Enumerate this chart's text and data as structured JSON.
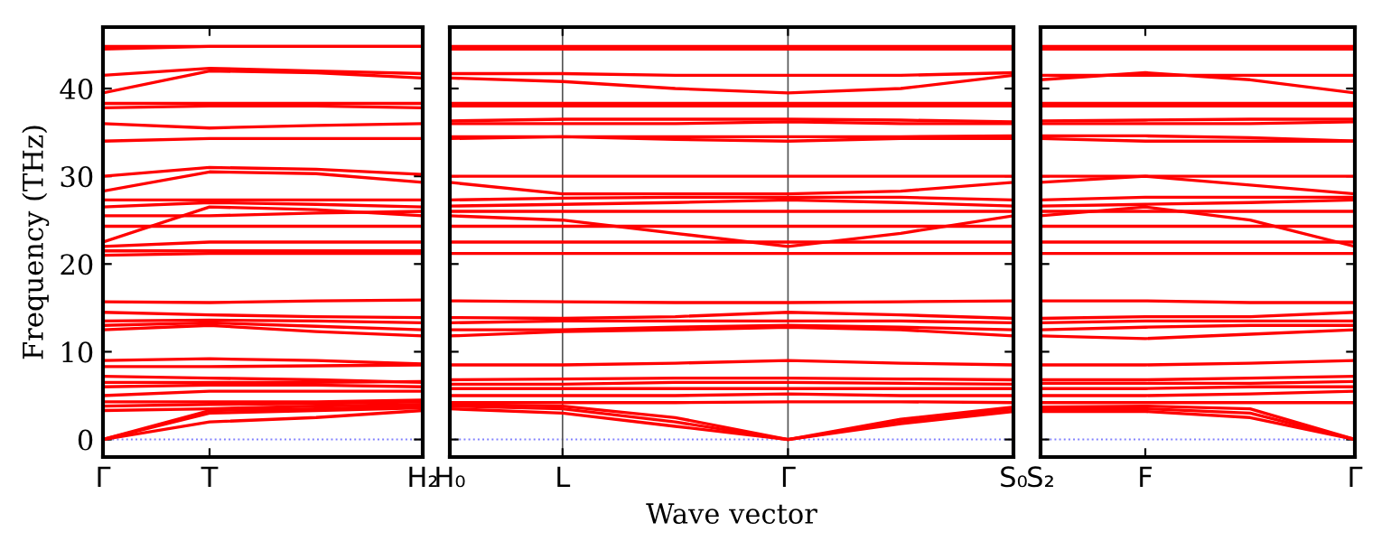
{
  "chart_data": [
    {
      "type": "line",
      "ylabel": "Frequency (THz)",
      "categories": [
        "Γ",
        "T",
        null,
        "H₂"
      ],
      "ylim": [
        -2,
        47
      ],
      "yticks": [
        0,
        10,
        20,
        30,
        40
      ],
      "line_style": "solid",
      "ref_lines": [
        {
          "axis": "y",
          "value": 0,
          "label": null,
          "color": "#8080ff",
          "line_style": "dotted"
        }
      ],
      "series": [
        {
          "color": "#ff0000",
          "values": [
            0,
            2,
            2.5,
            3.3
          ]
        },
        {
          "color": "#ff0000",
          "values": [
            0,
            3,
            3.3,
            3.6
          ]
        },
        {
          "color": "#ff0000",
          "values": [
            0,
            3.3,
            3.5,
            3.8
          ]
        },
        {
          "color": "#ff0000",
          "values": [
            3.3,
            3.5,
            3.8,
            4
          ]
        },
        {
          "color": "#ff0000",
          "values": [
            3.8,
            4,
            4.1,
            4.3
          ]
        },
        {
          "color": "#ff0000",
          "values": [
            4.3,
            4.3,
            4.3,
            4.5
          ]
        },
        {
          "color": "#ff0000",
          "values": [
            5,
            5.5,
            5.5,
            5.5
          ]
        },
        {
          "color": "#ff0000",
          "values": [
            6,
            6.2,
            6.2,
            6
          ]
        },
        {
          "color": "#ff0000",
          "values": [
            6.5,
            6.5,
            6.5,
            6.6
          ]
        },
        {
          "color": "#ff0000",
          "values": [
            7.2,
            7,
            6.8,
            6.5
          ]
        },
        {
          "color": "#ff0000",
          "values": [
            8.3,
            8.3,
            8.4,
            8.5
          ]
        },
        {
          "color": "#ff0000",
          "values": [
            9,
            9.2,
            9,
            8.6
          ]
        },
        {
          "color": "#ff0000",
          "values": [
            12.5,
            13,
            12.3,
            11.8
          ]
        },
        {
          "color": "#ff0000",
          "values": [
            13,
            13.3,
            12.9,
            12.5
          ]
        },
        {
          "color": "#ff0000",
          "values": [
            13.5,
            13.6,
            13.5,
            13.3
          ]
        },
        {
          "color": "#ff0000",
          "values": [
            14.5,
            14.2,
            14,
            13.9
          ]
        },
        {
          "color": "#ff0000",
          "values": [
            15.7,
            15.6,
            15.8,
            15.9
          ]
        },
        {
          "color": "#ff0000",
          "values": [
            21,
            21.2,
            21.2,
            21.2
          ]
        },
        {
          "color": "#ff0000",
          "values": [
            21.5,
            21.5,
            21.5,
            21.5
          ]
        },
        {
          "color": "#ff0000",
          "values": [
            22,
            22.5,
            22.5,
            22.5
          ]
        },
        {
          "color": "#ff0000",
          "values": [
            22.5,
            26.5,
            26.2,
            25.5
          ]
        },
        {
          "color": "#ff0000",
          "values": [
            24.3,
            24.3,
            24.3,
            24.3
          ]
        },
        {
          "color": "#ff0000",
          "values": [
            25.5,
            25.5,
            25.8,
            26
          ]
        },
        {
          "color": "#ff0000",
          "values": [
            26.5,
            27,
            26.8,
            26.5
          ]
        },
        {
          "color": "#ff0000",
          "values": [
            27.3,
            27.3,
            27.3,
            27.3
          ]
        },
        {
          "color": "#ff0000",
          "values": [
            28.3,
            30.5,
            30.3,
            29.3
          ]
        },
        {
          "color": "#ff0000",
          "values": [
            30,
            31,
            30.8,
            30.2
          ]
        },
        {
          "color": "#ff0000",
          "values": [
            34,
            34.3,
            34.3,
            34.3
          ]
        },
        {
          "color": "#ff0000",
          "values": [
            36,
            35.5,
            35.8,
            36
          ]
        },
        {
          "color": "#ff0000",
          "values": [
            37.8,
            38,
            38,
            37.8
          ]
        },
        {
          "color": "#ff0000",
          "values": [
            38.3,
            38.3,
            38.3,
            38.3
          ]
        },
        {
          "color": "#ff0000",
          "values": [
            39.5,
            42,
            41.8,
            41.2
          ]
        },
        {
          "color": "#ff0000",
          "values": [
            41.5,
            42.3,
            42,
            41.7
          ]
        },
        {
          "color": "#ff0000",
          "values": [
            44.5,
            44.8,
            44.8,
            44.8
          ]
        },
        {
          "color": "#ff0000",
          "values": [
            44.8,
            44.8,
            44.8,
            44.8
          ]
        }
      ]
    },
    {
      "type": "line",
      "xlabel": "Wave vector",
      "categories": [
        "H₀",
        "L",
        null,
        "Γ",
        null,
        "S₀"
      ],
      "ylim": [
        -2,
        47
      ],
      "yticks": [
        {
          "value": 0,
          "label": null
        },
        {
          "value": 10,
          "label": null
        },
        {
          "value": 20,
          "label": null
        },
        {
          "value": 30,
          "label": null
        },
        {
          "value": 40,
          "label": null
        }
      ],
      "tick_labels": "x",
      "grid": "x",
      "line_style": "solid",
      "ref_lines": [
        {
          "axis": "y",
          "value": 0,
          "label": null,
          "color": "#8080ff",
          "line_style": "dotted"
        }
      ],
      "series": [
        {
          "color": "#ff0000",
          "values": [
            3.5,
            3,
            1.5,
            0,
            1.8,
            3.2
          ]
        },
        {
          "color": "#ff0000",
          "values": [
            3.8,
            3.5,
            2,
            0,
            2,
            3.5
          ]
        },
        {
          "color": "#ff0000",
          "values": [
            4,
            3.8,
            2.5,
            0,
            2.3,
            3.7
          ]
        },
        {
          "color": "#ff0000",
          "values": [
            4.2,
            4.2,
            4.2,
            4.3,
            4.3,
            4.2
          ]
        },
        {
          "color": "#ff0000",
          "values": [
            5,
            5,
            5,
            5.2,
            5,
            5
          ]
        },
        {
          "color": "#ff0000",
          "values": [
            5.8,
            5.8,
            5.8,
            5.8,
            5.8,
            5.8
          ]
        },
        {
          "color": "#ff0000",
          "values": [
            6.3,
            6.3,
            6.5,
            6.5,
            6.4,
            6.3
          ]
        },
        {
          "color": "#ff0000",
          "values": [
            6.8,
            6.9,
            7,
            7,
            6.9,
            6.8
          ]
        },
        {
          "color": "#ff0000",
          "values": [
            8.5,
            8.5,
            8.7,
            9,
            8.7,
            8.5
          ]
        },
        {
          "color": "#ff0000",
          "values": [
            11.8,
            12.3,
            12.5,
            12.8,
            12.5,
            11.8
          ]
        },
        {
          "color": "#ff0000",
          "values": [
            12.5,
            12.5,
            12.8,
            13,
            12.8,
            12.5
          ]
        },
        {
          "color": "#ff0000",
          "values": [
            13.3,
            13.5,
            13.5,
            13.5,
            13.5,
            13.3
          ]
        },
        {
          "color": "#ff0000",
          "values": [
            13.9,
            13.8,
            14,
            14.5,
            14.2,
            13.8
          ]
        },
        {
          "color": "#ff0000",
          "values": [
            15.8,
            15.7,
            15.6,
            15.6,
            15.7,
            15.8
          ]
        },
        {
          "color": "#ff0000",
          "values": [
            21.2,
            21.2,
            21.2,
            21.2,
            21.2,
            21.2
          ]
        },
        {
          "color": "#ff0000",
          "values": [
            22.5,
            22.5,
            22.5,
            22.5,
            22.5,
            22.5
          ]
        },
        {
          "color": "#ff0000",
          "values": [
            25.5,
            25,
            23.5,
            22,
            23.5,
            25.5
          ]
        },
        {
          "color": "#ff0000",
          "values": [
            24.3,
            24.3,
            24.3,
            24.3,
            24.3,
            24.3
          ]
        },
        {
          "color": "#ff0000",
          "values": [
            26,
            26,
            26,
            26,
            26,
            26
          ]
        },
        {
          "color": "#ff0000",
          "values": [
            26.6,
            26.8,
            27,
            27.3,
            27,
            26.6
          ]
        },
        {
          "color": "#ff0000",
          "values": [
            27.3,
            27.5,
            27.6,
            27.6,
            27.6,
            27.3
          ]
        },
        {
          "color": "#ff0000",
          "values": [
            29.3,
            28,
            28,
            28,
            28.3,
            29.3
          ]
        },
        {
          "color": "#ff0000",
          "values": [
            30,
            30,
            30,
            30,
            30,
            30
          ]
        },
        {
          "color": "#ff0000",
          "values": [
            34.3,
            34.5,
            34.2,
            34,
            34.3,
            34.3
          ]
        },
        {
          "color": "#ff0000",
          "values": [
            34.5,
            34.5,
            34.5,
            34.5,
            34.5,
            34.6
          ]
        },
        {
          "color": "#ff0000",
          "values": [
            36,
            36,
            36,
            36.2,
            36,
            36
          ]
        },
        {
          "color": "#ff0000",
          "values": [
            36.3,
            36.5,
            36.5,
            36.5,
            36.4,
            36.2
          ]
        },
        {
          "color": "#ff0000",
          "values": [
            38,
            38,
            38,
            38,
            38,
            38
          ]
        },
        {
          "color": "#ff0000",
          "values": [
            38.3,
            38.3,
            38.3,
            38.3,
            38.3,
            38.3
          ]
        },
        {
          "color": "#ff0000",
          "values": [
            41.2,
            40.8,
            40,
            39.5,
            40,
            41.5
          ]
        },
        {
          "color": "#ff0000",
          "values": [
            41.7,
            41.7,
            41.5,
            41.5,
            41.5,
            41.8
          ]
        },
        {
          "color": "#ff0000",
          "values": [
            44.8,
            44.8,
            44.8,
            44.8,
            44.8,
            44.8
          ]
        },
        {
          "color": "#ff0000",
          "values": [
            44.5,
            44.5,
            44.5,
            44.5,
            44.5,
            44.5
          ]
        }
      ]
    },
    {
      "type": "line",
      "categories": [
        "S₂",
        "F",
        null,
        "Γ"
      ],
      "ylim": [
        -2,
        47
      ],
      "yticks": [
        {
          "value": 0,
          "label": null
        },
        {
          "value": 10,
          "label": null
        },
        {
          "value": 20,
          "label": null
        },
        {
          "value": 30,
          "label": null
        },
        {
          "value": 40,
          "label": null
        }
      ],
      "tick_labels": "x",
      "line_style": "solid",
      "ref_lines": [
        {
          "axis": "y",
          "value": 0,
          "label": null,
          "color": "#8080ff",
          "line_style": "dotted"
        }
      ],
      "series": [
        {
          "color": "#ff0000",
          "values": [
            3.2,
            3.2,
            2.5,
            0
          ]
        },
        {
          "color": "#ff0000",
          "values": [
            3.5,
            3.5,
            3,
            0
          ]
        },
        {
          "color": "#ff0000",
          "values": [
            3.7,
            3.8,
            3.5,
            0
          ]
        },
        {
          "color": "#ff0000",
          "values": [
            4.2,
            4.2,
            4.2,
            4.2
          ]
        },
        {
          "color": "#ff0000",
          "values": [
            5,
            5,
            5.2,
            5.5
          ]
        },
        {
          "color": "#ff0000",
          "values": [
            5.8,
            5.8,
            6,
            6
          ]
        },
        {
          "color": "#ff0000",
          "values": [
            6.4,
            6.4,
            6.4,
            6.6
          ]
        },
        {
          "color": "#ff0000",
          "values": [
            6.8,
            6.8,
            7,
            7.2
          ]
        },
        {
          "color": "#ff0000",
          "values": [
            8.5,
            8.5,
            8.7,
            9
          ]
        },
        {
          "color": "#ff0000",
          "values": [
            11.8,
            11.5,
            12,
            12.5
          ]
        },
        {
          "color": "#ff0000",
          "values": [
            12.5,
            12.8,
            13,
            13
          ]
        },
        {
          "color": "#ff0000",
          "values": [
            13.3,
            13.5,
            13.5,
            13.5
          ]
        },
        {
          "color": "#ff0000",
          "values": [
            13.8,
            14,
            14,
            14.5
          ]
        },
        {
          "color": "#ff0000",
          "values": [
            15.8,
            15.8,
            15.6,
            15.6
          ]
        },
        {
          "color": "#ff0000",
          "values": [
            21.2,
            21.2,
            21.2,
            21.2
          ]
        },
        {
          "color": "#ff0000",
          "values": [
            22.5,
            22.5,
            22.5,
            22.5
          ]
        },
        {
          "color": "#ff0000",
          "values": [
            25.5,
            26.5,
            25,
            22
          ]
        },
        {
          "color": "#ff0000",
          "values": [
            24.3,
            24.3,
            24.3,
            24.3
          ]
        },
        {
          "color": "#ff0000",
          "values": [
            26,
            26,
            26,
            26
          ]
        },
        {
          "color": "#ff0000",
          "values": [
            26.6,
            26.8,
            27,
            27.3
          ]
        },
        {
          "color": "#ff0000",
          "values": [
            27.3,
            27.6,
            27.6,
            27.6
          ]
        },
        {
          "color": "#ff0000",
          "values": [
            29.3,
            30,
            29,
            28
          ]
        },
        {
          "color": "#ff0000",
          "values": [
            30,
            30,
            30,
            30
          ]
        },
        {
          "color": "#ff0000",
          "values": [
            34.3,
            34,
            34,
            34
          ]
        },
        {
          "color": "#ff0000",
          "values": [
            34.6,
            34.6,
            34.4,
            34
          ]
        },
        {
          "color": "#ff0000",
          "values": [
            36,
            36,
            36,
            36.2
          ]
        },
        {
          "color": "#ff0000",
          "values": [
            36.3,
            36.4,
            36.5,
            36.5
          ]
        },
        {
          "color": "#ff0000",
          "values": [
            38,
            38,
            38,
            38
          ]
        },
        {
          "color": "#ff0000",
          "values": [
            38.3,
            38.3,
            38.3,
            38.3
          ]
        },
        {
          "color": "#ff0000",
          "values": [
            41,
            41.8,
            41,
            39.5
          ]
        },
        {
          "color": "#ff0000",
          "values": [
            41.5,
            41.5,
            41.5,
            41.5
          ]
        },
        {
          "color": "#ff0000",
          "values": [
            44.8,
            44.8,
            44.8,
            44.8
          ]
        },
        {
          "color": "#ff0000",
          "values": [
            44.5,
            44.5,
            44.5,
            44.5
          ]
        }
      ]
    }
  ]
}
